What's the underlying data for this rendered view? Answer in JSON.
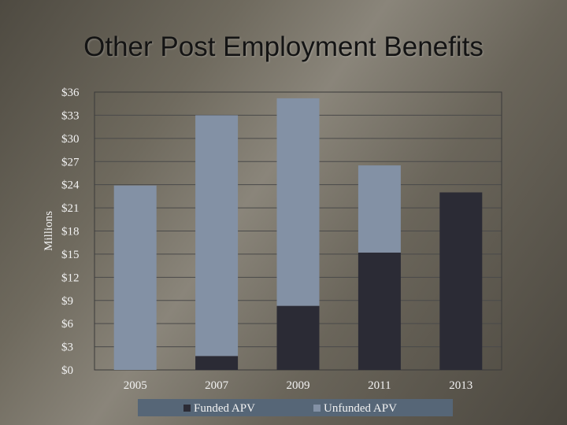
{
  "slide": {
    "title": "Other Post Employment Benefits"
  },
  "colors": {
    "funded": "#2b2b35",
    "unfunded": "#8391a5",
    "gridline": "#4a4a4a",
    "plot_border": "#3a3a3a",
    "legend_bg": "#566677"
  },
  "chart_data": {
    "type": "bar",
    "stacked": true,
    "title": "",
    "xlabel": "",
    "ylabel": "Millions",
    "categories": [
      "2005",
      "2007",
      "2009",
      "2011",
      "2013"
    ],
    "series": [
      {
        "name": "Funded APV",
        "values": [
          0,
          1.8,
          8.3,
          15.2,
          23.0
        ]
      },
      {
        "name": "Unfunded APV",
        "values": [
          23.9,
          31.2,
          26.9,
          11.3,
          0
        ]
      }
    ],
    "ylim": [
      0,
      36
    ],
    "yticks": [
      0,
      3,
      6,
      9,
      12,
      15,
      18,
      21,
      24,
      27,
      30,
      33,
      36
    ],
    "ytick_labels": [
      "$0",
      "$3",
      "$6",
      "$9",
      "$12",
      "$15",
      "$18",
      "$21",
      "$24",
      "$27",
      "$30",
      "$33",
      "$36"
    ],
    "grid": true,
    "legend_position": "bottom"
  }
}
